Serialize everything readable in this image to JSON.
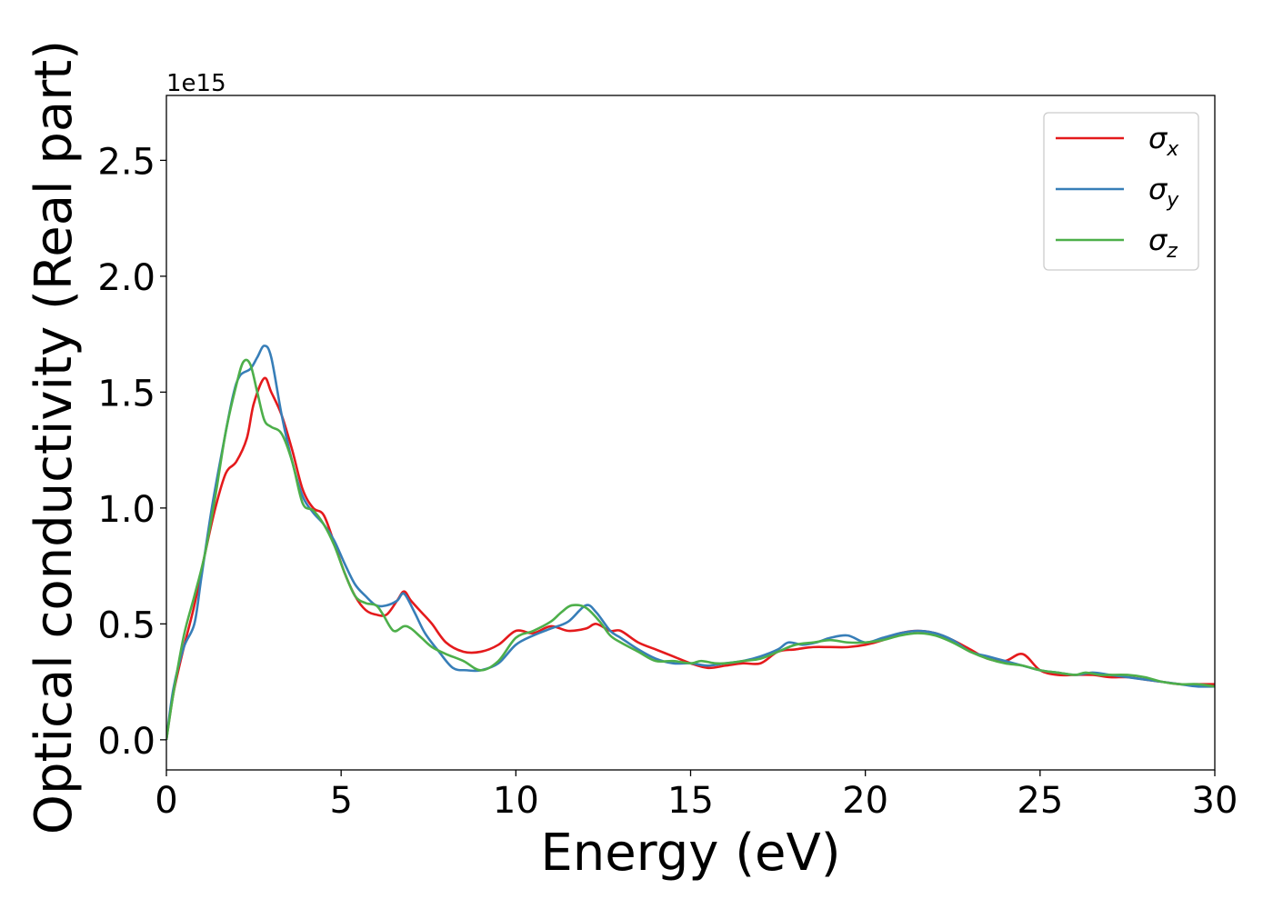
{
  "chart_data": {
    "type": "line",
    "title": "",
    "xlabel": "Energy (eV)",
    "ylabel": "Optical conductivity (Real part)",
    "y_offset_label": "1e15",
    "xlim": [
      0,
      30
    ],
    "ylim": [
      -0.13,
      2.78
    ],
    "x_ticks": [
      0,
      5,
      10,
      15,
      20,
      25,
      30
    ],
    "x_tick_labels": [
      "0",
      "5",
      "10",
      "15",
      "20",
      "25",
      "30"
    ],
    "y_ticks": [
      0.0,
      0.5,
      1.0,
      1.5,
      2.0,
      2.5
    ],
    "y_tick_labels": [
      "0.0",
      "0.5",
      "1.0",
      "1.5",
      "2.0",
      "2.5"
    ],
    "grid": false,
    "legend_position": "top-right",
    "series": [
      {
        "name": "σx",
        "symbol": "σ",
        "subscript": "x",
        "color": "#e41a1c",
        "points": [
          [
            0,
            0
          ],
          [
            0.2,
            0.2
          ],
          [
            0.5,
            0.4
          ],
          [
            0.8,
            0.58
          ],
          [
            1.1,
            0.8
          ],
          [
            1.4,
            1.0
          ],
          [
            1.7,
            1.15
          ],
          [
            2.0,
            1.2
          ],
          [
            2.3,
            1.3
          ],
          [
            2.5,
            1.45
          ],
          [
            2.8,
            1.56
          ],
          [
            3.0,
            1.5
          ],
          [
            3.3,
            1.4
          ],
          [
            3.6,
            1.25
          ],
          [
            3.9,
            1.08
          ],
          [
            4.2,
            1.0
          ],
          [
            4.5,
            0.97
          ],
          [
            4.8,
            0.85
          ],
          [
            5.1,
            0.72
          ],
          [
            5.4,
            0.62
          ],
          [
            5.7,
            0.56
          ],
          [
            6.0,
            0.54
          ],
          [
            6.3,
            0.54
          ],
          [
            6.6,
            0.6
          ],
          [
            6.8,
            0.64
          ],
          [
            7.0,
            0.6
          ],
          [
            7.3,
            0.55
          ],
          [
            7.6,
            0.5
          ],
          [
            8.0,
            0.42
          ],
          [
            8.5,
            0.38
          ],
          [
            9.0,
            0.38
          ],
          [
            9.5,
            0.41
          ],
          [
            10.0,
            0.47
          ],
          [
            10.5,
            0.46
          ],
          [
            11.0,
            0.49
          ],
          [
            11.5,
            0.47
          ],
          [
            12.0,
            0.48
          ],
          [
            12.3,
            0.5
          ],
          [
            12.7,
            0.47
          ],
          [
            13.0,
            0.47
          ],
          [
            13.5,
            0.42
          ],
          [
            14.0,
            0.39
          ],
          [
            14.5,
            0.36
          ],
          [
            15.0,
            0.33
          ],
          [
            15.5,
            0.31
          ],
          [
            16.0,
            0.32
          ],
          [
            16.5,
            0.33
          ],
          [
            17.0,
            0.33
          ],
          [
            17.5,
            0.38
          ],
          [
            18.0,
            0.39
          ],
          [
            18.5,
            0.4
          ],
          [
            19.0,
            0.4
          ],
          [
            19.5,
            0.4
          ],
          [
            20.0,
            0.41
          ],
          [
            20.5,
            0.43
          ],
          [
            21.0,
            0.46
          ],
          [
            21.5,
            0.47
          ],
          [
            22.0,
            0.46
          ],
          [
            22.5,
            0.43
          ],
          [
            23.0,
            0.39
          ],
          [
            23.5,
            0.35
          ],
          [
            24.0,
            0.34
          ],
          [
            24.5,
            0.37
          ],
          [
            25.0,
            0.3
          ],
          [
            25.5,
            0.28
          ],
          [
            26.0,
            0.28
          ],
          [
            26.5,
            0.28
          ],
          [
            27.0,
            0.27
          ],
          [
            27.5,
            0.27
          ],
          [
            28.0,
            0.26
          ],
          [
            28.5,
            0.25
          ],
          [
            29.0,
            0.24
          ],
          [
            29.5,
            0.24
          ],
          [
            30,
            0.24
          ]
        ]
      },
      {
        "name": "σy",
        "symbol": "σ",
        "subscript": "y",
        "color": "#377eb8",
        "points": [
          [
            0,
            0
          ],
          [
            0.2,
            0.22
          ],
          [
            0.5,
            0.4
          ],
          [
            0.8,
            0.5
          ],
          [
            1.0,
            0.7
          ],
          [
            1.3,
            1.0
          ],
          [
            1.6,
            1.25
          ],
          [
            1.9,
            1.48
          ],
          [
            2.1,
            1.57
          ],
          [
            2.4,
            1.6
          ],
          [
            2.6,
            1.65
          ],
          [
            2.8,
            1.7
          ],
          [
            3.0,
            1.65
          ],
          [
            3.3,
            1.4
          ],
          [
            3.6,
            1.2
          ],
          [
            3.9,
            1.05
          ],
          [
            4.2,
            0.98
          ],
          [
            4.5,
            0.93
          ],
          [
            4.8,
            0.86
          ],
          [
            5.1,
            0.76
          ],
          [
            5.4,
            0.67
          ],
          [
            5.7,
            0.62
          ],
          [
            6.0,
            0.58
          ],
          [
            6.3,
            0.58
          ],
          [
            6.6,
            0.6
          ],
          [
            6.8,
            0.63
          ],
          [
            7.1,
            0.55
          ],
          [
            7.4,
            0.46
          ],
          [
            7.8,
            0.38
          ],
          [
            8.2,
            0.31
          ],
          [
            8.6,
            0.3
          ],
          [
            9.0,
            0.3
          ],
          [
            9.5,
            0.33
          ],
          [
            10.0,
            0.41
          ],
          [
            10.5,
            0.45
          ],
          [
            11.0,
            0.48
          ],
          [
            11.5,
            0.51
          ],
          [
            12.0,
            0.58
          ],
          [
            12.3,
            0.55
          ],
          [
            12.7,
            0.47
          ],
          [
            13.0,
            0.44
          ],
          [
            13.5,
            0.39
          ],
          [
            14.0,
            0.35
          ],
          [
            14.5,
            0.33
          ],
          [
            15.0,
            0.33
          ],
          [
            15.5,
            0.32
          ],
          [
            16.0,
            0.33
          ],
          [
            16.5,
            0.34
          ],
          [
            17.0,
            0.36
          ],
          [
            17.5,
            0.39
          ],
          [
            17.8,
            0.42
          ],
          [
            18.2,
            0.41
          ],
          [
            18.6,
            0.42
          ],
          [
            19.0,
            0.44
          ],
          [
            19.5,
            0.45
          ],
          [
            20.0,
            0.42
          ],
          [
            20.5,
            0.44
          ],
          [
            21.0,
            0.46
          ],
          [
            21.5,
            0.47
          ],
          [
            22.0,
            0.46
          ],
          [
            22.5,
            0.43
          ],
          [
            23.0,
            0.38
          ],
          [
            23.5,
            0.36
          ],
          [
            24.0,
            0.34
          ],
          [
            24.5,
            0.32
          ],
          [
            25.0,
            0.3
          ],
          [
            25.5,
            0.29
          ],
          [
            26.0,
            0.28
          ],
          [
            26.5,
            0.29
          ],
          [
            27.0,
            0.28
          ],
          [
            27.5,
            0.27
          ],
          [
            28.0,
            0.26
          ],
          [
            28.5,
            0.25
          ],
          [
            29.0,
            0.24
          ],
          [
            29.5,
            0.23
          ],
          [
            30,
            0.23
          ]
        ]
      },
      {
        "name": "σz",
        "symbol": "σ",
        "subscript": "z",
        "color": "#4daf4a",
        "points": [
          [
            0,
            0
          ],
          [
            0.2,
            0.2
          ],
          [
            0.5,
            0.45
          ],
          [
            0.8,
            0.62
          ],
          [
            1.1,
            0.8
          ],
          [
            1.4,
            1.05
          ],
          [
            1.7,
            1.33
          ],
          [
            2.0,
            1.53
          ],
          [
            2.2,
            1.63
          ],
          [
            2.4,
            1.62
          ],
          [
            2.6,
            1.5
          ],
          [
            2.8,
            1.38
          ],
          [
            3.0,
            1.35
          ],
          [
            3.3,
            1.32
          ],
          [
            3.6,
            1.2
          ],
          [
            3.9,
            1.02
          ],
          [
            4.2,
            0.99
          ],
          [
            4.5,
            0.93
          ],
          [
            4.8,
            0.84
          ],
          [
            5.1,
            0.72
          ],
          [
            5.4,
            0.62
          ],
          [
            5.7,
            0.59
          ],
          [
            6.0,
            0.58
          ],
          [
            6.2,
            0.54
          ],
          [
            6.5,
            0.47
          ],
          [
            6.8,
            0.49
          ],
          [
            7.0,
            0.48
          ],
          [
            7.3,
            0.44
          ],
          [
            7.6,
            0.4
          ],
          [
            8.0,
            0.37
          ],
          [
            8.5,
            0.34
          ],
          [
            9.0,
            0.3
          ],
          [
            9.5,
            0.34
          ],
          [
            10.0,
            0.44
          ],
          [
            10.5,
            0.47
          ],
          [
            11.0,
            0.51
          ],
          [
            11.3,
            0.55
          ],
          [
            11.6,
            0.58
          ],
          [
            12.0,
            0.57
          ],
          [
            12.4,
            0.51
          ],
          [
            12.7,
            0.45
          ],
          [
            13.0,
            0.42
          ],
          [
            13.5,
            0.38
          ],
          [
            14.0,
            0.34
          ],
          [
            14.5,
            0.34
          ],
          [
            15.0,
            0.33
          ],
          [
            15.3,
            0.34
          ],
          [
            15.7,
            0.33
          ],
          [
            16.0,
            0.33
          ],
          [
            16.5,
            0.34
          ],
          [
            17.0,
            0.35
          ],
          [
            17.5,
            0.38
          ],
          [
            18.0,
            0.41
          ],
          [
            18.5,
            0.42
          ],
          [
            19.0,
            0.43
          ],
          [
            19.5,
            0.42
          ],
          [
            20.0,
            0.42
          ],
          [
            20.5,
            0.43
          ],
          [
            21.0,
            0.45
          ],
          [
            21.5,
            0.46
          ],
          [
            22.0,
            0.45
          ],
          [
            22.5,
            0.42
          ],
          [
            23.0,
            0.38
          ],
          [
            23.5,
            0.35
          ],
          [
            24.0,
            0.33
          ],
          [
            24.5,
            0.32
          ],
          [
            25.0,
            0.3
          ],
          [
            25.5,
            0.29
          ],
          [
            26.0,
            0.28
          ],
          [
            26.3,
            0.29
          ],
          [
            26.7,
            0.28
          ],
          [
            27.0,
            0.28
          ],
          [
            27.5,
            0.28
          ],
          [
            28.0,
            0.27
          ],
          [
            28.5,
            0.25
          ],
          [
            29.0,
            0.24
          ],
          [
            29.5,
            0.24
          ],
          [
            30,
            0.23
          ]
        ]
      }
    ]
  }
}
